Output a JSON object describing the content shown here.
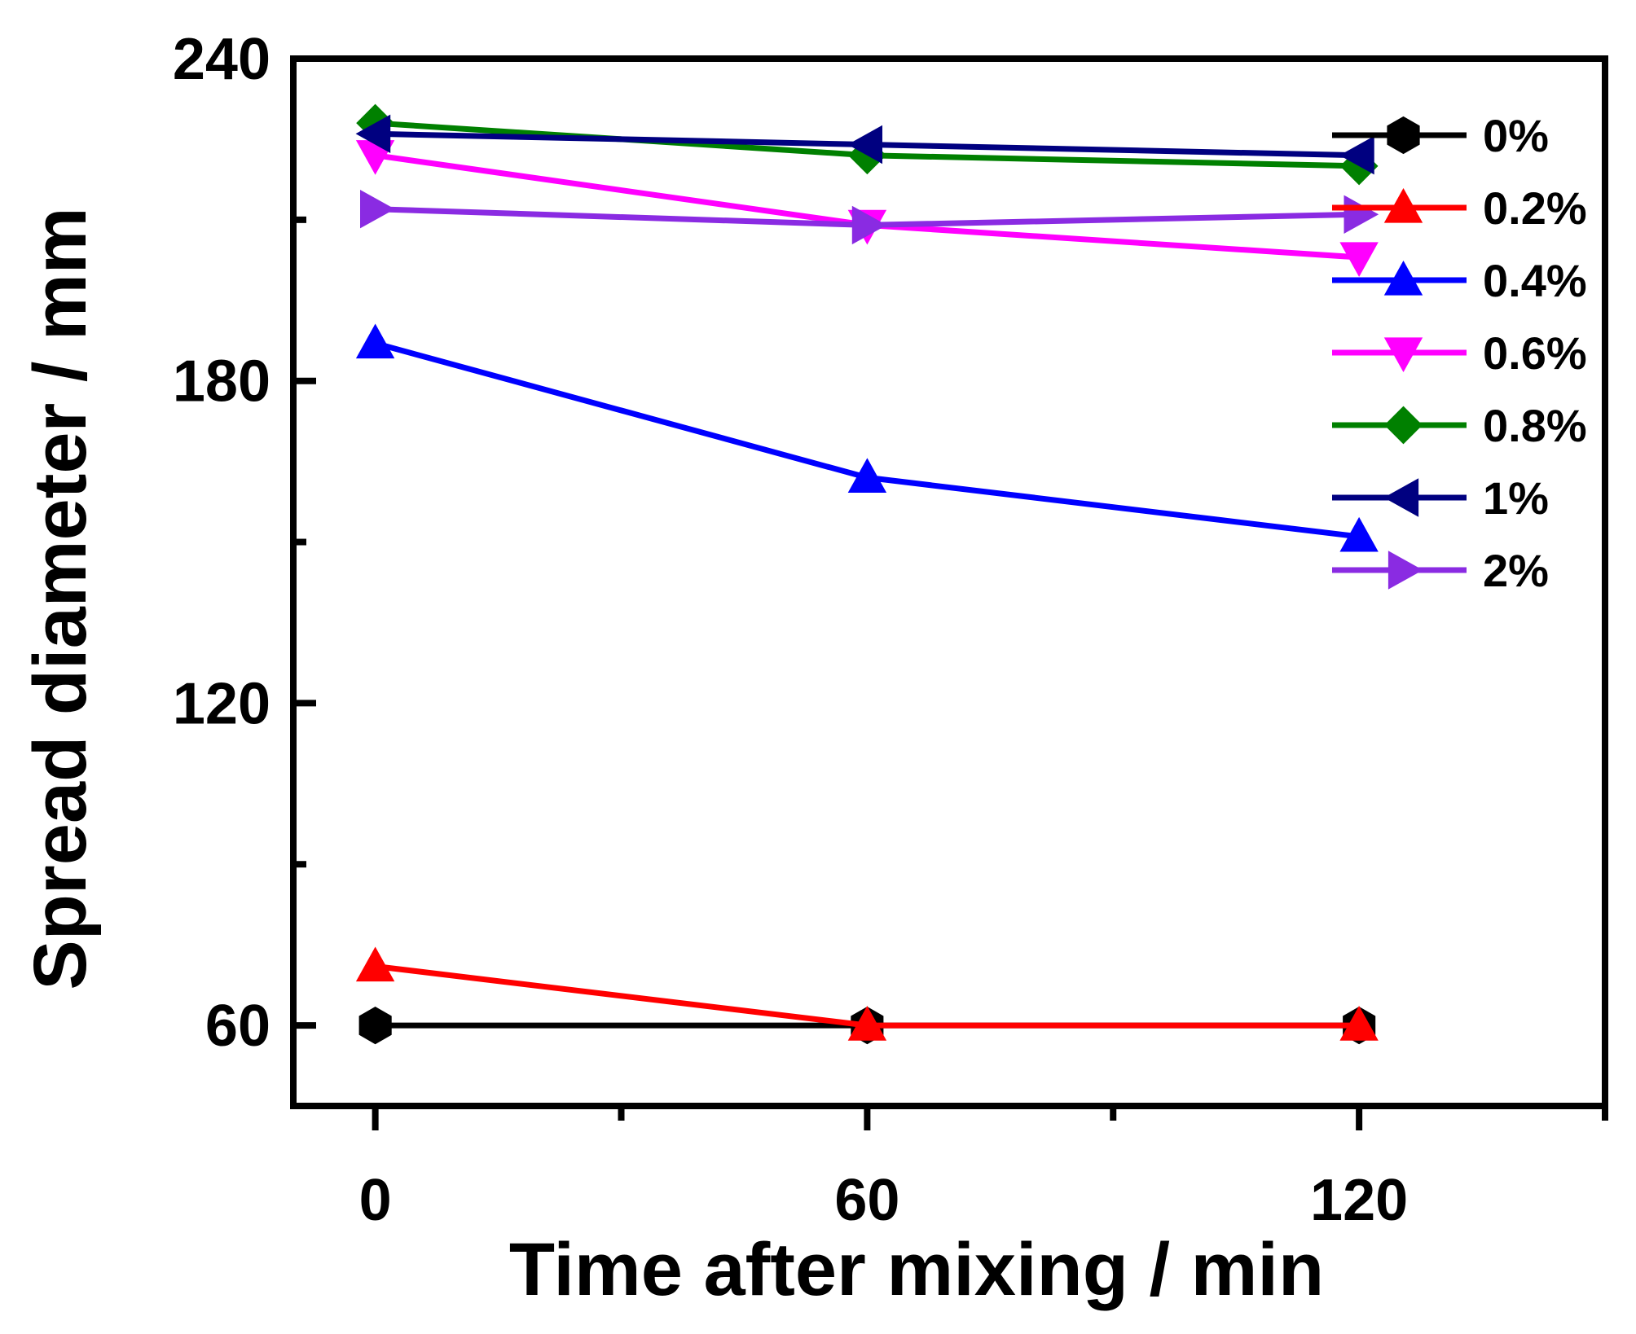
{
  "chart_data": {
    "type": "line",
    "title": "",
    "xlabel": "Time after mixing / min",
    "ylabel": "Spread diameter / mm",
    "xlim": [
      -10,
      150
    ],
    "ylim": [
      45,
      240
    ],
    "x_ticks": [
      0,
      60,
      120
    ],
    "x_minor_ticks": [
      30,
      90,
      150
    ],
    "y_ticks": [
      60,
      120,
      180,
      240
    ],
    "y_minor_ticks": [
      90,
      150,
      210
    ],
    "grid": false,
    "legend_position": "top-right",
    "categories": [
      0,
      60,
      120
    ],
    "series": [
      {
        "name": "0%",
        "color": "#000000",
        "marker": "hexagon",
        "values": [
          60,
          60,
          60
        ]
      },
      {
        "name": "0.2%",
        "color": "#ff0000",
        "marker": "triangle-up",
        "values": [
          71,
          60,
          60
        ]
      },
      {
        "name": "0.4%",
        "color": "#0000ff",
        "marker": "triangle-up",
        "values": [
          187,
          162,
          151
        ]
      },
      {
        "name": "0.6%",
        "color": "#ff00ff",
        "marker": "triangle-down",
        "values": [
          222,
          209,
          203
        ]
      },
      {
        "name": "0.8%",
        "color": "#008000",
        "marker": "diamond",
        "values": [
          228,
          222,
          220
        ]
      },
      {
        "name": "1%",
        "color": "#000080",
        "marker": "triangle-left",
        "values": [
          226,
          224,
          222
        ]
      },
      {
        "name": "2%",
        "color": "#8a2be2",
        "marker": "triangle-right",
        "values": [
          212,
          209,
          211
        ]
      }
    ]
  }
}
